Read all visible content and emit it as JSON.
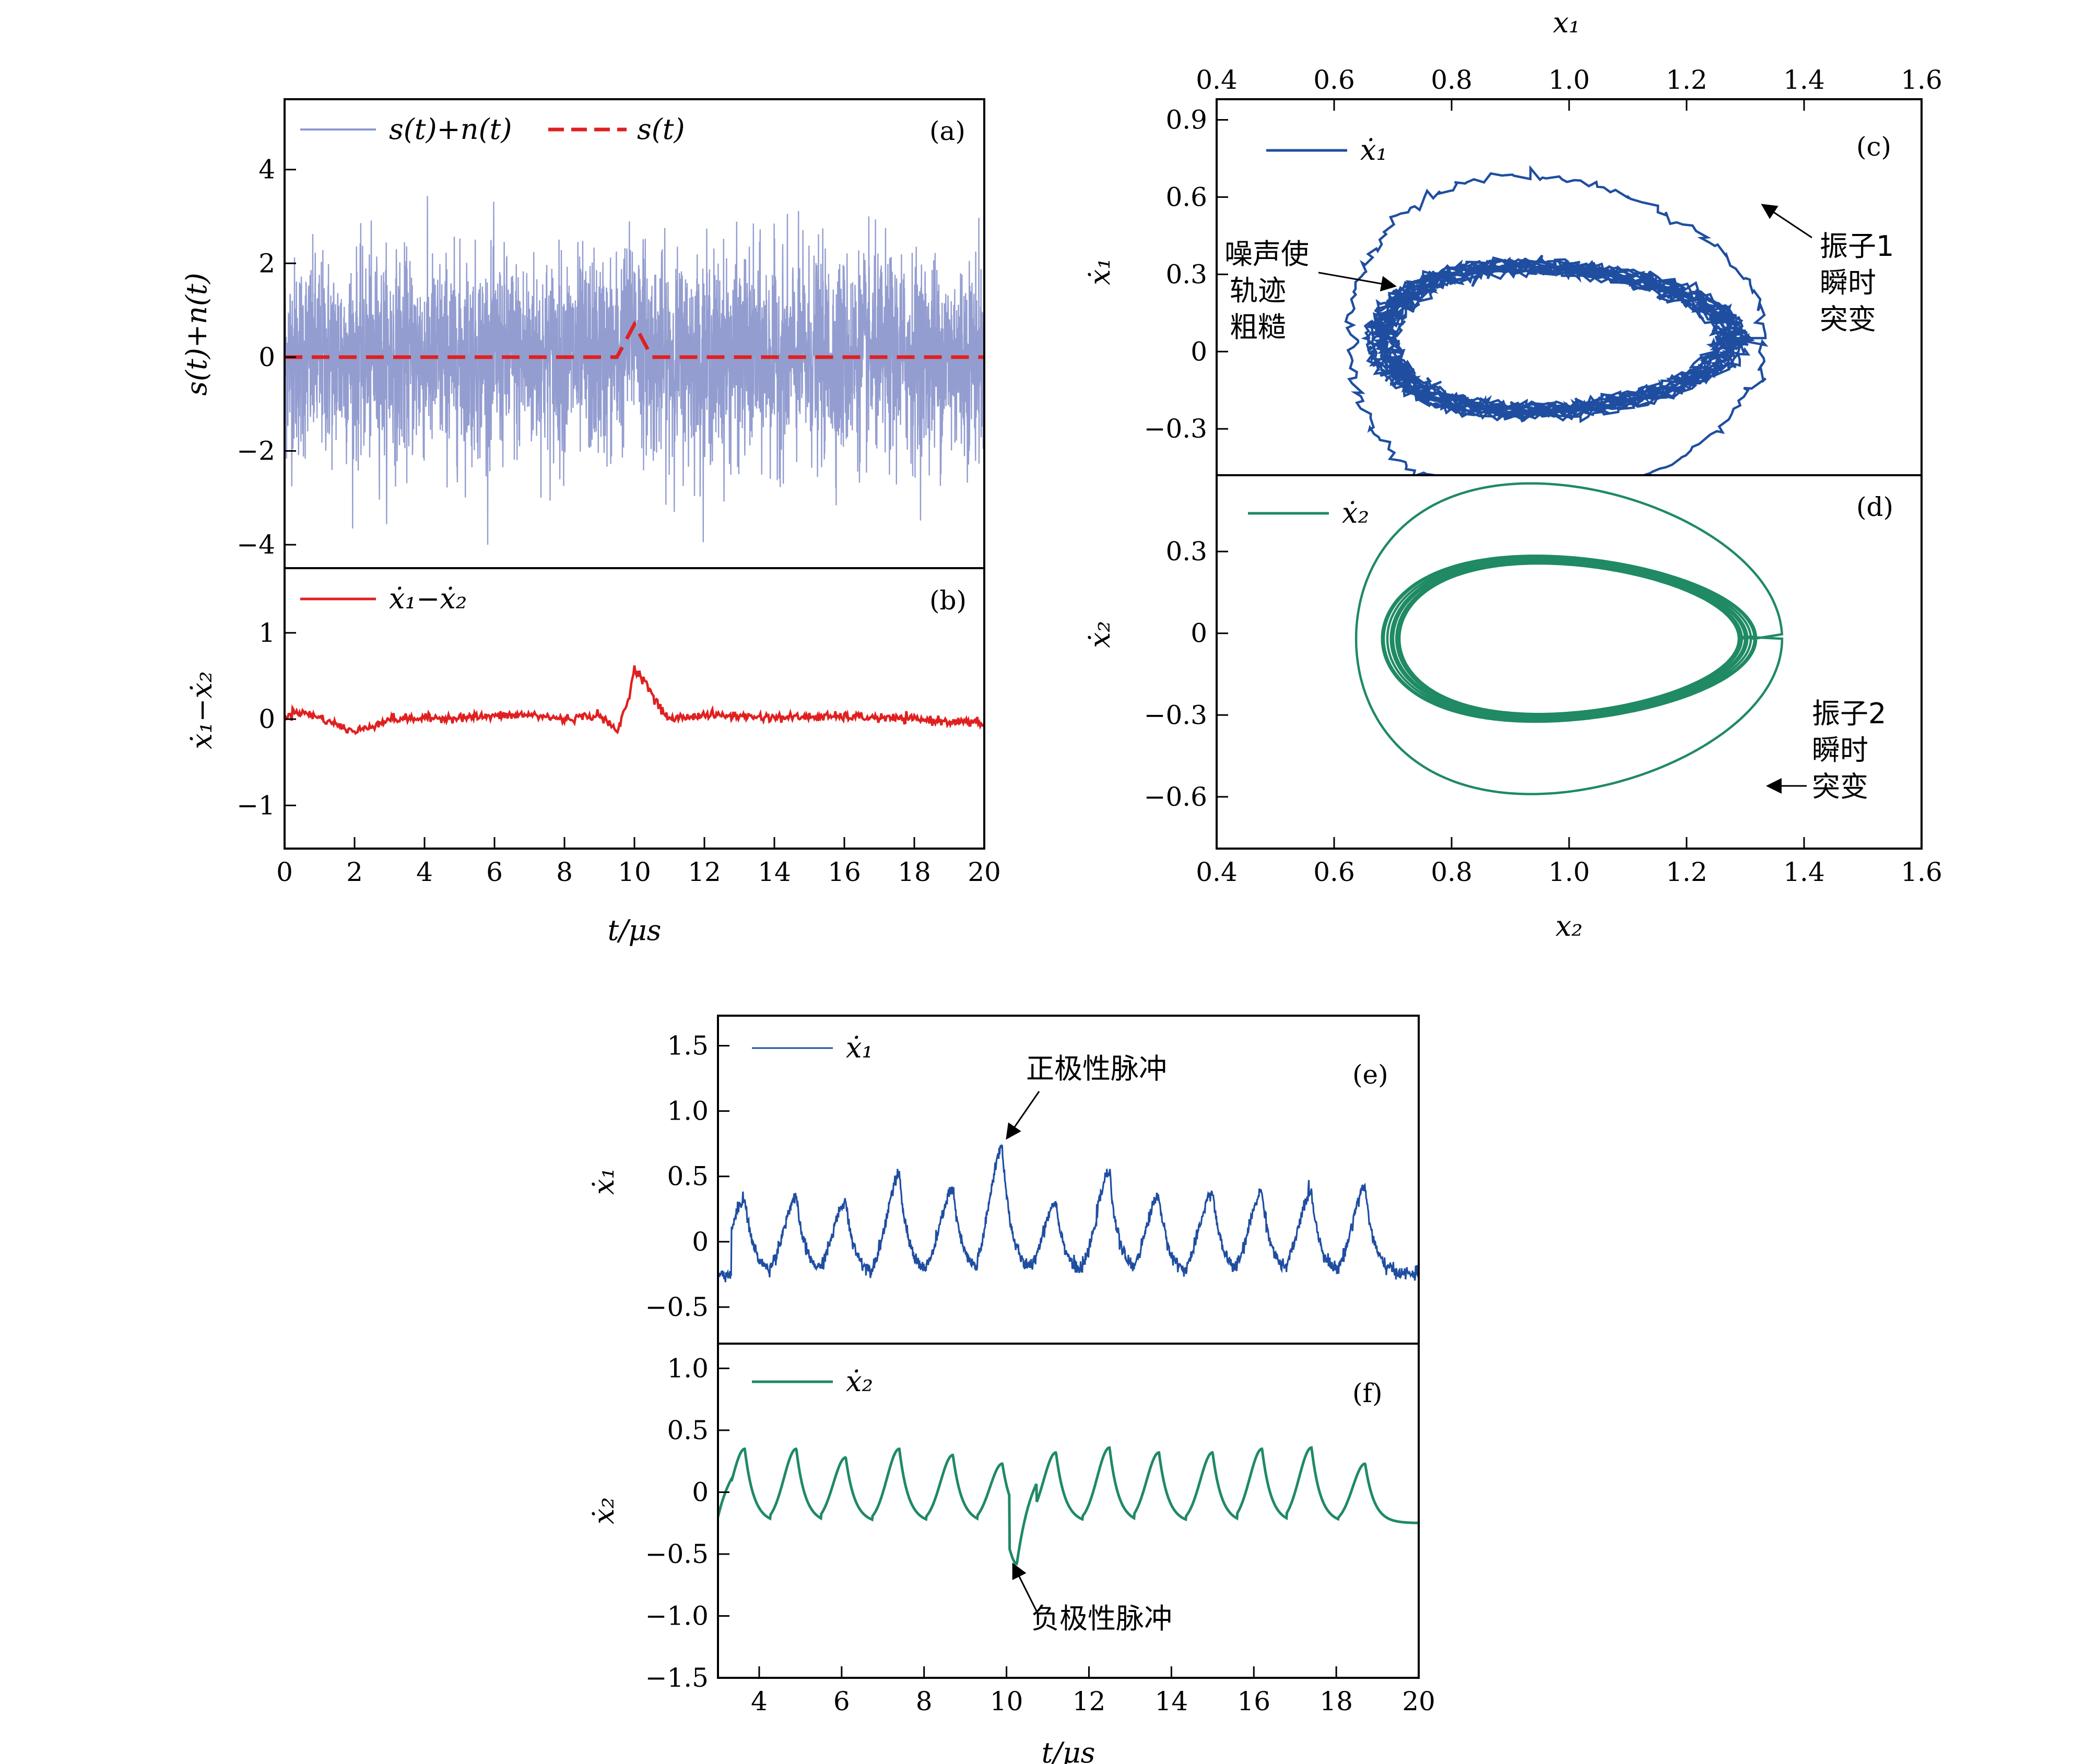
{
  "colors": {
    "noise": "#8d98cd",
    "signal": "#e02020",
    "x1": "#1f4ea1",
    "x2": "#1f8a63",
    "axis": "#000000"
  },
  "panels": {
    "a": {
      "tag": "(a)",
      "ylabel": "s(t)+n(t)",
      "legend1": "s(t)+n(t)",
      "legend2": "s(t)"
    },
    "b": {
      "tag": "(b)",
      "ylabel": "ẋ₁−ẋ₂",
      "legend": "ẋ₁−ẋ₂",
      "xlabel": "t/μs"
    },
    "c": {
      "tag": "(c)",
      "ylabel": "ẋ₁",
      "legend": "ẋ₁",
      "top_xlabel": "x₁",
      "annot_left": [
        "噪声使",
        "轨迹",
        "粗糙"
      ],
      "annot_right": [
        "振子1",
        "瞬时",
        "突变"
      ]
    },
    "d": {
      "tag": "(d)",
      "ylabel": "ẋ₂",
      "legend": "ẋ₂",
      "xlabel": "x₂",
      "annot": [
        "振子2",
        "瞬时",
        "突变"
      ]
    },
    "e": {
      "tag": "(e)",
      "ylabel": "ẋ₁",
      "legend": "ẋ₁",
      "annot": "正极性脉冲"
    },
    "f": {
      "tag": "(f)",
      "ylabel": "ẋ₂",
      "legend": "ẋ₂",
      "annot": "负极性脉冲",
      "xlabel": "t/μs"
    }
  },
  "chart_data": [
    {
      "panel": "a",
      "type": "line",
      "xlim": [
        0,
        20
      ],
      "ylim": [
        -4.5,
        5.5
      ],
      "xticks": [
        0,
        2,
        4,
        6,
        8,
        10,
        12,
        14,
        16,
        18,
        20
      ],
      "yticks": [
        -4,
        -2,
        0,
        2,
        4
      ],
      "ytick_labels": [
        "−4",
        "−2",
        "0",
        "2",
        "4"
      ],
      "series": [
        {
          "name": "s(t)+n(t)",
          "kind": "noise",
          "amplitude_range": [
            -4,
            3.7
          ]
        },
        {
          "name": "s(t)",
          "kind": "dashed",
          "x": [
            0,
            9.5,
            10,
            10.5,
            20
          ],
          "y": [
            0,
            0,
            0.7,
            0,
            0
          ]
        }
      ]
    },
    {
      "panel": "b",
      "type": "line",
      "xlim": [
        0,
        20
      ],
      "ylim": [
        -1.5,
        1.75
      ],
      "xticks": [
        0,
        2,
        4,
        6,
        8,
        10,
        12,
        14,
        16,
        18,
        20
      ],
      "yticks": [
        -1,
        0,
        1
      ],
      "ytick_labels": [
        "−1",
        "0",
        "1"
      ],
      "series": [
        {
          "name": "ẋ₁−ẋ₂",
          "x": [
            0,
            0.3,
            1,
            2,
            3,
            5,
            7,
            8,
            9,
            9.5,
            9.8,
            10,
            10.3,
            10.6,
            11,
            12,
            14,
            16,
            18,
            20
          ],
          "y": [
            0,
            0.1,
            0.02,
            -0.15,
            0,
            0.02,
            0.05,
            0.0,
            0.05,
            -0.15,
            0.2,
            0.58,
            0.45,
            0.2,
            0.0,
            0.05,
            0.02,
            0.03,
            0.0,
            -0.05
          ]
        }
      ]
    },
    {
      "panel": "c",
      "type": "line",
      "xlim": [
        0.4,
        1.6
      ],
      "ylim": [
        -0.48,
        0.98
      ],
      "xticks": [
        0.4,
        0.6,
        0.8,
        1.0,
        1.2,
        1.4,
        1.6
      ],
      "xtick_labels": [
        "0.4",
        "0.6",
        "0.8",
        "1.0",
        "1.2",
        "1.4",
        "1.6"
      ],
      "yticks": [
        -0.3,
        0,
        0.3,
        0.6,
        0.9
      ],
      "ytick_labels": [
        "−0.3",
        "0",
        "0.3",
        "0.6",
        "0.9"
      ],
      "series": [
        {
          "name": "ẋ₁",
          "kind": "limit-cycle",
          "center": [
            1.0,
            -0.02
          ],
          "x_extent": [
            0.65,
            1.37
          ],
          "y_extent": [
            -0.36,
            0.73
          ]
        }
      ]
    },
    {
      "panel": "d",
      "type": "line",
      "xlim": [
        0.4,
        1.6
      ],
      "ylim": [
        -0.79,
        0.58
      ],
      "xticks": [
        0.4,
        0.6,
        0.8,
        1.0,
        1.2,
        1.4,
        1.6
      ],
      "xtick_labels": [
        "0.4",
        "0.6",
        "0.8",
        "1.0",
        "1.2",
        "1.4",
        "1.6"
      ],
      "yticks": [
        -0.6,
        -0.3,
        0,
        0.3
      ],
      "ytick_labels": [
        "−0.6",
        "−0.3",
        "0",
        "0.3"
      ],
      "series": [
        {
          "name": "ẋ₂",
          "kind": "limit-cycle",
          "center": [
            1.0,
            0.0
          ],
          "x_extent": [
            0.66,
            1.4
          ],
          "y_extent": [
            -0.59,
            0.38
          ]
        }
      ]
    },
    {
      "panel": "e",
      "type": "line",
      "xlim": [
        3,
        20
      ],
      "ylim": [
        -0.78,
        1.73
      ],
      "xticks": [
        4,
        6,
        8,
        10,
        12,
        14,
        16,
        18,
        20
      ],
      "yticks": [
        -0.5,
        0,
        0.5,
        1.0,
        1.5
      ],
      "ytick_labels": [
        "−0.5",
        "0",
        "0.5",
        "1.0",
        "1.5"
      ],
      "series": [
        {
          "name": "ẋ₁",
          "x": [
            3,
            3.65,
            4.9,
            6.1,
            7.4,
            8.7,
            9.9,
            11.2,
            12.5,
            13.7,
            15.0,
            16.2,
            17.4,
            18.7
          ],
          "y": [
            -0.25,
            0.33,
            0.33,
            0.3,
            0.5,
            0.4,
            0.72,
            0.3,
            0.53,
            0.35,
            0.38,
            0.38,
            0.38,
            0.42
          ]
        }
      ]
    },
    {
      "panel": "f",
      "type": "line",
      "xlim": [
        3,
        20
      ],
      "ylim": [
        -1.5,
        1.2
      ],
      "xticks": [
        4,
        6,
        8,
        10,
        12,
        14,
        16,
        18,
        20
      ],
      "yticks": [
        -1.5,
        -1.0,
        -0.5,
        0,
        0.5,
        1.0
      ],
      "ytick_labels": [
        "−1.5",
        "−1.0",
        "−0.5",
        "0",
        "0.5",
        "1.0"
      ],
      "series": [
        {
          "name": "ẋ₂",
          "x": [
            3,
            3.65,
            4.9,
            6.1,
            7.4,
            8.7,
            9.9,
            10.25,
            11.2,
            12.5,
            13.7,
            15.0,
            16.2,
            17.4,
            18.7
          ],
          "y": [
            -0.2,
            0.35,
            0.35,
            0.28,
            0.35,
            0.3,
            0.23,
            -0.58,
            0.32,
            0.36,
            0.32,
            0.32,
            0.35,
            0.36,
            0.23
          ]
        }
      ]
    }
  ]
}
